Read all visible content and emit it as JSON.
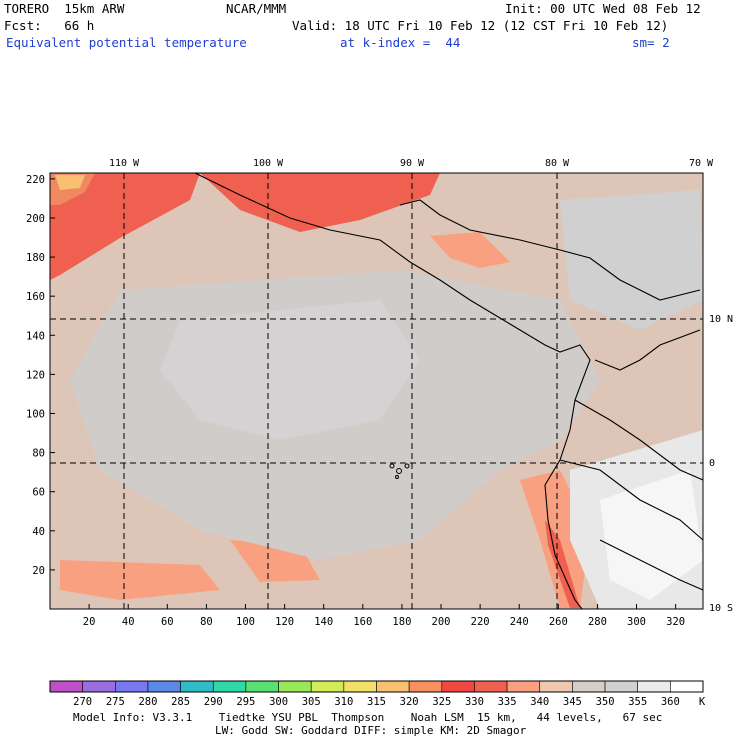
{
  "header": {
    "model": "TORERO  15km ARW",
    "center": "NCAR/MMM",
    "init": "Init: 00 UTC Wed 08 Feb 12",
    "fcst": "Fcst:   66 h",
    "valid": "Valid: 18 UTC Fri 10 Feb 12 (12 CST Fri 10 Feb 12)",
    "field": "Equivalent potential temperature",
    "level": "at k-index =  44",
    "smoothing": "sm= 2"
  },
  "map": {
    "top_lon_labels": [
      "110 W",
      "100 W",
      "90 W",
      "80 W",
      "70 W"
    ],
    "right_lat_labels": [
      "10 N",
      "0",
      "10 S"
    ],
    "y_grid_labels": [
      "220",
      "200",
      "180",
      "160",
      "140",
      "120",
      "100",
      "80",
      "60",
      "40",
      "20"
    ],
    "x_grid_labels": [
      "20",
      "40",
      "60",
      "80",
      "100",
      "120",
      "140",
      "160",
      "180",
      "200",
      "220",
      "240",
      "260",
      "280",
      "300",
      "320"
    ]
  },
  "colorbar": {
    "labels": [
      "270",
      "275",
      "280",
      "285",
      "290",
      "295",
      "300",
      "305",
      "310",
      "315",
      "320",
      "325",
      "330",
      "335",
      "340",
      "345",
      "350",
      "355",
      "360"
    ],
    "unit": "K",
    "colors": [
      "#c050c8",
      "#9a6ee0",
      "#7a78f0",
      "#5a8ae6",
      "#2fbcc8",
      "#2fd8a8",
      "#58e070",
      "#98e858",
      "#d0ec58",
      "#f0e068",
      "#f8c070",
      "#f89060",
      "#f04840",
      "#f06050",
      "#f8a080",
      "#f0c8b0",
      "#d6cdc6",
      "#d0d0d0",
      "#ececec",
      "#ffffff"
    ]
  },
  "footer": {
    "line1": "Model Info: V3.3.1    Tiedtke YSU PBL  Thompson    Noah LSM  15 km,   44 levels,   67 sec",
    "line2": "LW: Godd SW: Goddard DIFF: simple KM: 2D Smagor"
  }
}
